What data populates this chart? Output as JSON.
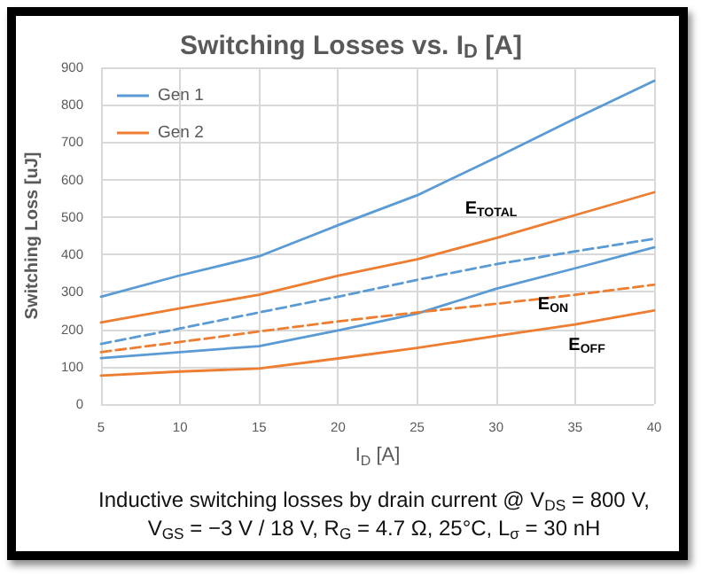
{
  "chart_data": {
    "type": "line",
    "title": "Switching Losses vs. I$_{D}$ [A]",
    "xlabel": "I$_{D}$ [A]",
    "ylabel": "Switching Loss [uJ]",
    "x": [
      5,
      10,
      15,
      20,
      25,
      30,
      35,
      40
    ],
    "xlim": [
      5,
      40
    ],
    "xticks": [
      5,
      10,
      15,
      20,
      25,
      30,
      35,
      40
    ],
    "ylim": [
      0,
      900
    ],
    "yticks": [
      0,
      100,
      200,
      300,
      400,
      500,
      600,
      700,
      800,
      900
    ],
    "grid": true,
    "legend": "top left",
    "marker": "none",
    "line_style": "solid",
    "series": [
      {
        "name": "Gen 1",
        "color": "#5b9bd5",
        "values": [
          287,
          344,
          395,
          478,
          558,
          659,
          763,
          864
        ]
      },
      {
        "color": "#5b9bd5",
        "line_style": "dashed",
        "values": [
          161,
          202,
          245,
          287,
          332,
          374,
          408,
          442
        ]
      },
      {
        "color": "#5b9bd5",
        "values": [
          123,
          139,
          155,
          197,
          242,
          308,
          363,
          419
        ]
      },
      {
        "name": "Gen 2",
        "color": "#ed7d31",
        "values": [
          218,
          256,
          292,
          343,
          387,
          444,
          505,
          566
        ]
      },
      {
        "color": "#ed7d31",
        "line_style": "dashed",
        "values": [
          139,
          166,
          194,
          221,
          245,
          268,
          292,
          319
        ]
      },
      {
        "color": "#ed7d31",
        "values": [
          76,
          87,
          95,
          122,
          150,
          182,
          213,
          250
        ]
      }
    ],
    "annotations": [
      "E$_{TOTAL}$",
      "E$_{ON}$",
      "E$_{OFF}$",
      "Inductive switching losses by drain current @ V$_{DS}$ = 800 V, V$_{GS}$ = −3 V / 18 V, R$_{G}$ = 4.7 Ω, 25°C, L$_{σ}$ = 30 nH"
    ]
  }
}
